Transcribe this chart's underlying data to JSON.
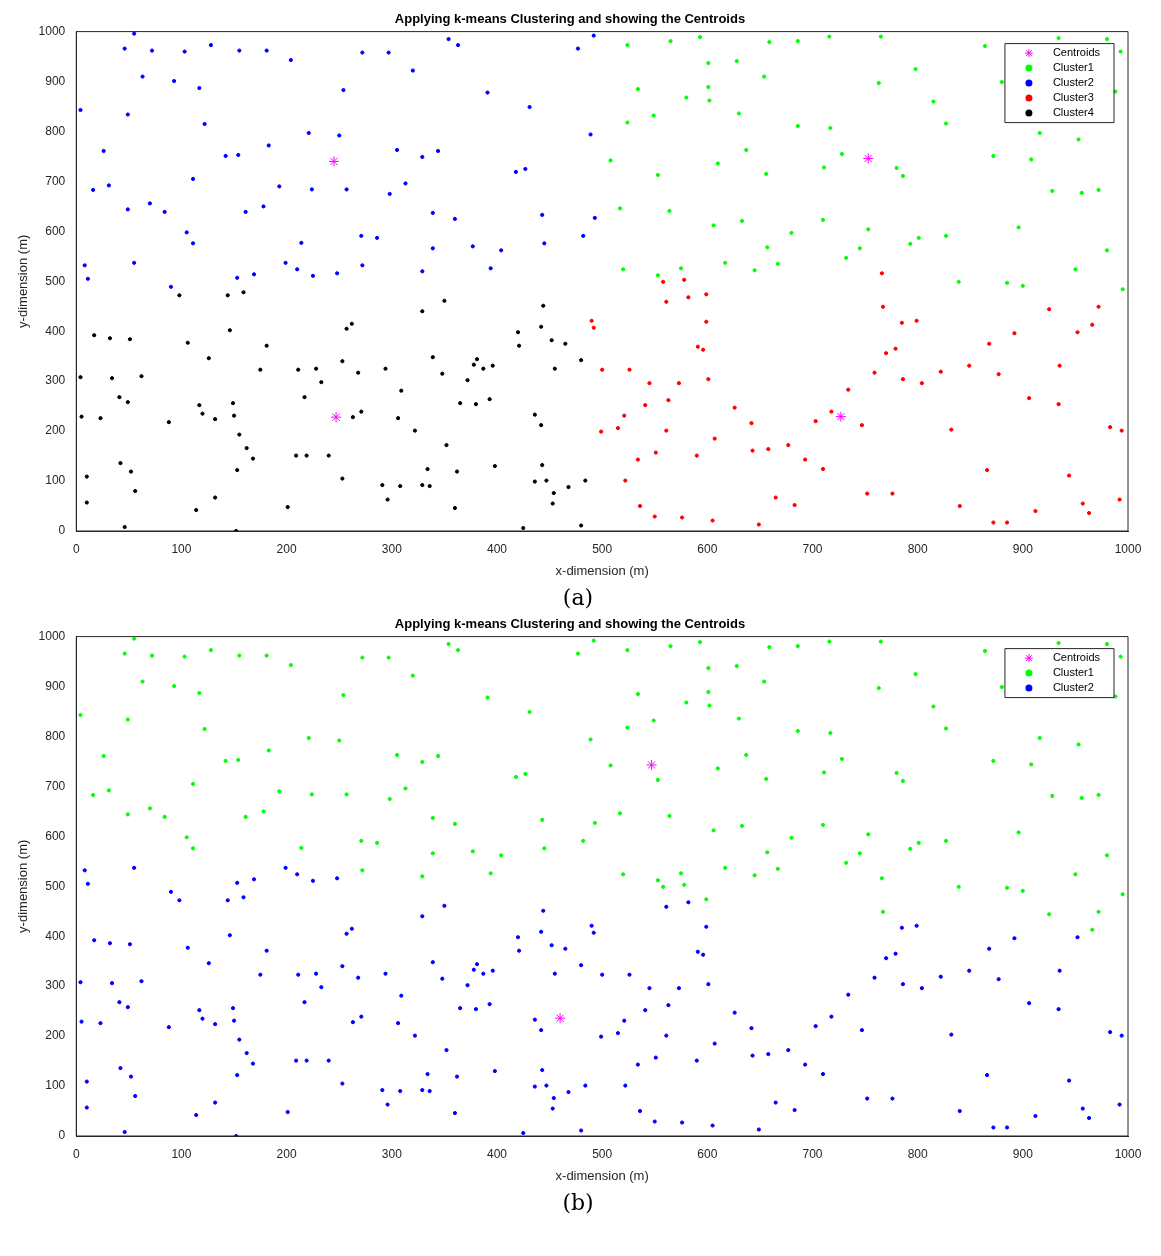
{
  "chart_data": [
    {
      "type": "scatter",
      "title": "Applying k-means Clustering and showing the Centroids",
      "xlabel": "x-dimension (m)",
      "ylabel": "y-dimension (m)",
      "annotations": [
        "(a)"
      ],
      "xlim": [
        0,
        1000
      ],
      "ylim": [
        0,
        1000
      ],
      "xticks": [
        0,
        100,
        200,
        300,
        400,
        500,
        600,
        700,
        800,
        900,
        1000
      ],
      "yticks": [
        0,
        100,
        200,
        300,
        400,
        500,
        600,
        700,
        800,
        900,
        1000
      ],
      "grid": false,
      "legend": "top right",
      "series": [
        {
          "name": "Centroids",
          "color": "#ff00ff",
          "marker": "cross",
          "x": [
            245,
            753,
            247,
            727
          ],
          "values": [
            740,
            746,
            228,
            229
          ]
        },
        {
          "name": "Cluster1",
          "color": "#00ff00",
          "marker": "circle",
          "x": [
            524,
            565,
            593,
            659,
            686,
            716,
            765,
            864,
            934,
            980,
            993,
            601,
            601,
            534,
            654,
            628,
            763,
            798,
            880,
            988,
            524,
            549,
            580,
            602,
            630,
            686,
            717,
            815,
            827,
            916,
            953,
            508,
            553,
            610,
            637,
            656,
            711,
            728,
            780,
            786,
            872,
            908,
            972,
            928,
            956,
            517,
            564,
            606,
            633,
            657,
            680,
            710,
            753,
            793,
            827,
            896,
            520,
            553,
            575,
            617,
            645,
            667,
            732,
            745,
            801,
            839,
            900,
            950,
            995,
            980,
            885
          ],
          "values": [
            973,
            981,
            989,
            979,
            981,
            990,
            990,
            971,
            987,
            985,
            960,
            937,
            889,
            885,
            910,
            941,
            897,
            925,
            899,
            880,
            818,
            832,
            868,
            862,
            836,
            811,
            807,
            860,
            816,
            797,
            784,
            742,
            713,
            736,
            763,
            715,
            728,
            755,
            727,
            711,
            751,
            744,
            683,
            681,
            677,
            646,
            641,
            612,
            621,
            568,
            597,
            623,
            604,
            575,
            591,
            608,
            524,
            512,
            526,
            537,
            522,
            535,
            547,
            566,
            587,
            499,
            491,
            524,
            484,
            562,
            497
          ]
        },
        {
          "name": "Cluster2",
          "color": "#0000ff",
          "marker": "circle",
          "x": [
            55,
            46,
            72,
            103,
            128,
            155,
            181,
            204,
            272,
            297,
            320,
            354,
            363,
            391,
            431,
            477,
            492,
            4,
            49,
            63,
            93,
            117,
            122,
            26,
            142,
            154,
            183,
            221,
            250,
            254,
            305,
            329,
            344,
            427,
            418,
            489,
            31,
            16,
            111,
            49,
            70,
            84,
            161,
            178,
            193,
            224,
            214,
            257,
            298,
            313,
            339,
            360,
            339,
            271,
            286,
            377,
            404,
            394,
            445,
            443,
            493,
            482,
            111,
            105,
            8,
            11,
            55,
            90,
            153,
            169,
            199,
            210,
            225,
            248,
            272,
            329
          ],
          "values": [
            996,
            966,
            962,
            960,
            973,
            962,
            962,
            943,
            958,
            958,
            922,
            985,
            973,
            878,
            849,
            966,
            992,
            843,
            834,
            910,
            901,
            887,
            815,
            761,
            751,
            753,
            772,
            797,
            792,
            883,
            763,
            749,
            761,
            725,
            719,
            794,
            692,
            683,
            705,
            644,
            656,
            639,
            639,
            650,
            690,
            684,
            577,
            684,
            675,
            696,
            637,
            625,
            566,
            591,
            587,
            570,
            562,
            526,
            576,
            633,
            627,
            591,
            576,
            598,
            532,
            505,
            537,
            489,
            507,
            514,
            537,
            524,
            511,
            516,
            532,
            520
          ]
        },
        {
          "name": "Cluster3",
          "color": "#ff0000",
          "marker": "circle",
          "x": [
            490,
            492,
            500,
            526,
            521,
            499,
            515,
            545,
            541,
            558,
            578,
            561,
            582,
            591,
            599,
            599,
            596,
            601,
            573,
            563,
            561,
            551,
            534,
            590,
            607,
            626,
            642,
            643,
            658,
            677,
            693,
            710,
            703,
            718,
            734,
            747,
            759,
            770,
            779,
            766,
            767,
            785,
            799,
            786,
            804,
            822,
            849,
            877,
            868,
            892,
            925,
            952,
            966,
            972,
            935,
            906,
            934,
            983,
            994,
            944,
            957,
            963,
            992,
            912,
            872,
            885,
            866,
            832,
            840,
            776,
            752,
            683,
            665,
            649,
            605,
            576,
            550,
            536,
            522
          ],
          "values": [
            421,
            407,
            323,
            323,
            231,
            199,
            206,
            296,
            252,
            499,
            503,
            459,
            468,
            369,
            474,
            419,
            363,
            304,
            296,
            262,
            201,
            157,
            143,
            151,
            185,
            247,
            216,
            161,
            164,
            172,
            143,
            124,
            220,
            239,
            283,
            212,
            317,
            356,
            365,
            516,
            449,
            417,
            421,
            304,
            296,
            319,
            331,
            314,
            375,
            396,
            444,
            398,
            413,
            449,
            331,
            266,
            254,
            208,
            201,
            111,
            55,
            36,
            63,
            40,
            17,
            17,
            122,
            203,
            50,
            75,
            75,
            52,
            67,
            13,
            21,
            27,
            29,
            50,
            101
          ]
        },
        {
          "name": "Cluster4",
          "color": "#000000",
          "marker": "circle",
          "x": [
            17,
            32,
            51,
            98,
            144,
            159,
            146,
            175,
            181,
            106,
            34,
            62,
            4,
            41,
            49,
            23,
            5,
            88,
            126,
            117,
            120,
            132,
            149,
            150,
            155,
            162,
            168,
            153,
            114,
            132,
            42,
            10,
            52,
            10,
            56,
            201,
            209,
            219,
            217,
            211,
            228,
            233,
            240,
            253,
            263,
            271,
            268,
            257,
            262,
            253,
            294,
            306,
            309,
            322,
            329,
            308,
            291,
            296,
            334,
            329,
            336,
            339,
            350,
            348,
            352,
            362,
            365,
            360,
            372,
            378,
            381,
            387,
            380,
            396,
            393,
            398,
            421,
            420,
            444,
            442,
            436,
            442,
            443,
            436,
            447,
            454,
            453,
            468,
            484,
            480,
            425,
            152,
            46,
            452,
            465,
            455,
            480
          ],
          "values": [
            392,
            386,
            384,
            472,
            472,
            478,
            402,
            323,
            371,
            377,
            306,
            310,
            308,
            268,
            258,
            226,
            229,
            218,
            346,
            252,
            235,
            224,
            256,
            231,
            193,
            166,
            145,
            122,
            42,
            67,
            136,
            109,
            119,
            57,
            80,
            48,
            151,
            151,
            268,
            323,
            325,
            298,
            151,
            105,
            228,
            239,
            317,
            405,
            415,
            340,
            325,
            226,
            281,
            201,
            440,
            90,
            92,
            63,
            124,
            92,
            90,
            348,
            461,
            315,
            172,
            119,
            256,
            46,
            302,
            333,
            344,
            325,
            254,
            331,
            264,
            130,
            371,
            398,
            451,
            409,
            233,
            212,
            132,
            99,
            101,
            76,
            55,
            88,
            101,
            11,
            6,
            0,
            8,
            382,
            375,
            325,
            342
          ]
        }
      ]
    },
    {
      "type": "scatter",
      "title": "Applying k-means Clustering and showing the Centroids",
      "xlabel": "x-dimension (m)",
      "ylabel": "y-dimension (m)",
      "annotations": [
        "(b)"
      ],
      "xlim": [
        0,
        1000
      ],
      "ylim": [
        0,
        1000
      ],
      "xticks": [
        0,
        100,
        200,
        300,
        400,
        500,
        600,
        700,
        800,
        900,
        1000
      ],
      "yticks": [
        0,
        100,
        200,
        300,
        400,
        500,
        600,
        700,
        800,
        900,
        1000
      ],
      "grid": false,
      "legend": "top right",
      "series": [
        {
          "name": "Centroids",
          "color": "#ff00ff",
          "marker": "cross",
          "x": [
            547,
            460
          ],
          "values": [
            743,
            236
          ]
        },
        {
          "name": "Cluster1",
          "color": "#00ff00",
          "marker": "circle",
          "x": [
            55,
            46,
            72,
            103,
            128,
            155,
            181,
            204,
            272,
            297,
            320,
            354,
            363,
            391,
            431,
            477,
            492,
            4,
            49,
            63,
            93,
            117,
            122,
            26,
            142,
            154,
            183,
            221,
            250,
            254,
            305,
            329,
            344,
            427,
            418,
            489,
            31,
            16,
            111,
            49,
            70,
            84,
            161,
            178,
            193,
            224,
            214,
            257,
            298,
            313,
            339,
            360,
            339,
            271,
            286,
            377,
            404,
            394,
            445,
            443,
            493,
            482,
            111,
            105,
            272,
            329,
            524,
            565,
            593,
            659,
            686,
            716,
            765,
            864,
            934,
            980,
            993,
            601,
            601,
            534,
            654,
            628,
            763,
            798,
            880,
            988,
            524,
            549,
            580,
            602,
            630,
            686,
            717,
            815,
            827,
            916,
            953,
            508,
            553,
            610,
            637,
            656,
            711,
            728,
            780,
            786,
            872,
            908,
            972,
            928,
            956,
            517,
            564,
            606,
            633,
            657,
            680,
            710,
            753,
            793,
            827,
            896,
            520,
            553,
            575,
            617,
            645,
            667,
            732,
            745,
            801,
            839,
            900,
            950,
            995,
            980,
            885,
            578,
            558,
            599,
            766,
            767,
            925,
            966,
            972
          ],
          "values": [
            996,
            966,
            962,
            960,
            973,
            962,
            962,
            943,
            958,
            958,
            922,
            985,
            973,
            878,
            849,
            966,
            992,
            843,
            834,
            910,
            901,
            887,
            815,
            761,
            751,
            753,
            772,
            797,
            792,
            883,
            763,
            749,
            761,
            725,
            719,
            794,
            692,
            683,
            705,
            644,
            656,
            639,
            639,
            650,
            690,
            684,
            577,
            684,
            675,
            696,
            637,
            625,
            566,
            591,
            587,
            570,
            562,
            526,
            576,
            633,
            627,
            591,
            576,
            598,
            532,
            520,
            973,
            981,
            989,
            979,
            981,
            990,
            990,
            971,
            987,
            985,
            960,
            937,
            889,
            885,
            910,
            941,
            897,
            925,
            899,
            880,
            818,
            832,
            868,
            862,
            836,
            811,
            807,
            860,
            816,
            797,
            784,
            742,
            713,
            736,
            763,
            715,
            728,
            755,
            727,
            711,
            751,
            744,
            683,
            681,
            677,
            646,
            641,
            612,
            621,
            568,
            597,
            623,
            604,
            575,
            591,
            608,
            524,
            512,
            526,
            537,
            522,
            535,
            547,
            566,
            587,
            499,
            491,
            524,
            484,
            562,
            497,
            503,
            499,
            474,
            516,
            449,
            444,
            413,
            449
          ]
        },
        {
          "name": "Cluster2",
          "color": "#0000ff",
          "marker": "circle",
          "x": [
            17,
            32,
            51,
            98,
            144,
            159,
            146,
            175,
            181,
            106,
            34,
            62,
            4,
            41,
            49,
            23,
            5,
            88,
            126,
            117,
            120,
            132,
            149,
            150,
            155,
            162,
            168,
            153,
            114,
            132,
            42,
            10,
            52,
            10,
            56,
            201,
            209,
            219,
            217,
            211,
            228,
            233,
            240,
            253,
            263,
            271,
            268,
            257,
            262,
            253,
            294,
            306,
            309,
            322,
            329,
            308,
            291,
            296,
            334,
            329,
            336,
            339,
            350,
            348,
            352,
            362,
            365,
            360,
            372,
            378,
            381,
            387,
            380,
            396,
            393,
            398,
            421,
            420,
            444,
            442,
            436,
            442,
            443,
            436,
            447,
            454,
            453,
            468,
            484,
            480,
            425,
            152,
            46,
            452,
            465,
            455,
            480,
            8,
            11,
            55,
            90,
            153,
            169,
            199,
            210,
            225,
            248,
            490,
            492,
            500,
            526,
            521,
            499,
            515,
            545,
            541,
            561,
            582,
            591,
            599,
            596,
            601,
            573,
            563,
            561,
            551,
            534,
            590,
            607,
            626,
            642,
            643,
            658,
            677,
            693,
            710,
            703,
            718,
            734,
            747,
            759,
            770,
            779,
            785,
            799,
            786,
            804,
            822,
            849,
            877,
            868,
            892,
            952,
            935,
            906,
            934,
            983,
            994,
            944,
            957,
            963,
            992,
            912,
            872,
            885,
            866,
            832,
            840,
            776,
            752,
            683,
            665,
            649,
            605,
            576,
            550,
            536,
            522
          ],
          "values": [
            392,
            386,
            384,
            472,
            472,
            478,
            402,
            323,
            371,
            377,
            306,
            310,
            308,
            268,
            258,
            226,
            229,
            218,
            346,
            252,
            235,
            224,
            256,
            231,
            193,
            166,
            145,
            122,
            42,
            67,
            136,
            109,
            119,
            57,
            80,
            48,
            151,
            151,
            268,
            323,
            325,
            298,
            151,
            105,
            228,
            239,
            317,
            405,
            415,
            340,
            325,
            226,
            281,
            201,
            440,
            90,
            92,
            63,
            124,
            92,
            90,
            348,
            461,
            315,
            172,
            119,
            256,
            46,
            302,
            333,
            344,
            325,
            254,
            331,
            264,
            130,
            371,
            398,
            451,
            409,
            233,
            212,
            132,
            99,
            101,
            76,
            55,
            88,
            101,
            11,
            6,
            0,
            8,
            382,
            375,
            325,
            342,
            532,
            505,
            537,
            489,
            507,
            514,
            537,
            524,
            511,
            516,
            421,
            407,
            323,
            323,
            231,
            199,
            206,
            296,
            252,
            459,
            468,
            369,
            419,
            363,
            304,
            296,
            262,
            201,
            157,
            143,
            151,
            185,
            247,
            216,
            161,
            164,
            172,
            143,
            124,
            220,
            239,
            283,
            212,
            317,
            356,
            365,
            417,
            421,
            304,
            296,
            319,
            331,
            314,
            375,
            396,
            398,
            331,
            266,
            254,
            208,
            201,
            111,
            55,
            36,
            63,
            40,
            17,
            17,
            122,
            203,
            50,
            75,
            75,
            52,
            67,
            13,
            21,
            27,
            29,
            50,
            101
          ]
        }
      ]
    }
  ]
}
